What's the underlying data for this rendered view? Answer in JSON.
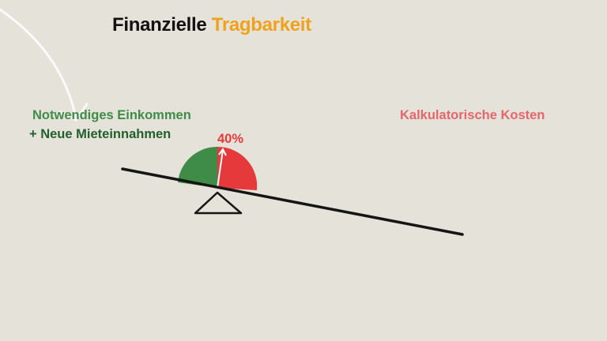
{
  "title": {
    "part1": "Finanzielle",
    "part2": "Tragbarkeit"
  },
  "left_labels": {
    "line1": "Notwendiges Einkommen",
    "line2": "+ Neue Mieteinnahmen"
  },
  "right_label": "Kalkulatorische Kosten",
  "gauge": {
    "label": "40%",
    "value_percent": 40
  },
  "colors": {
    "background": "#e5e2d9",
    "green": "#3f8c48",
    "dark_green": "#22602c",
    "red": "#e6393c",
    "pink": "#e5666b",
    "orange": "#f0a21e"
  },
  "icons": [
    "hand-drawn-arrow-icon",
    "balance-scale-icon",
    "gauge-icon"
  ]
}
